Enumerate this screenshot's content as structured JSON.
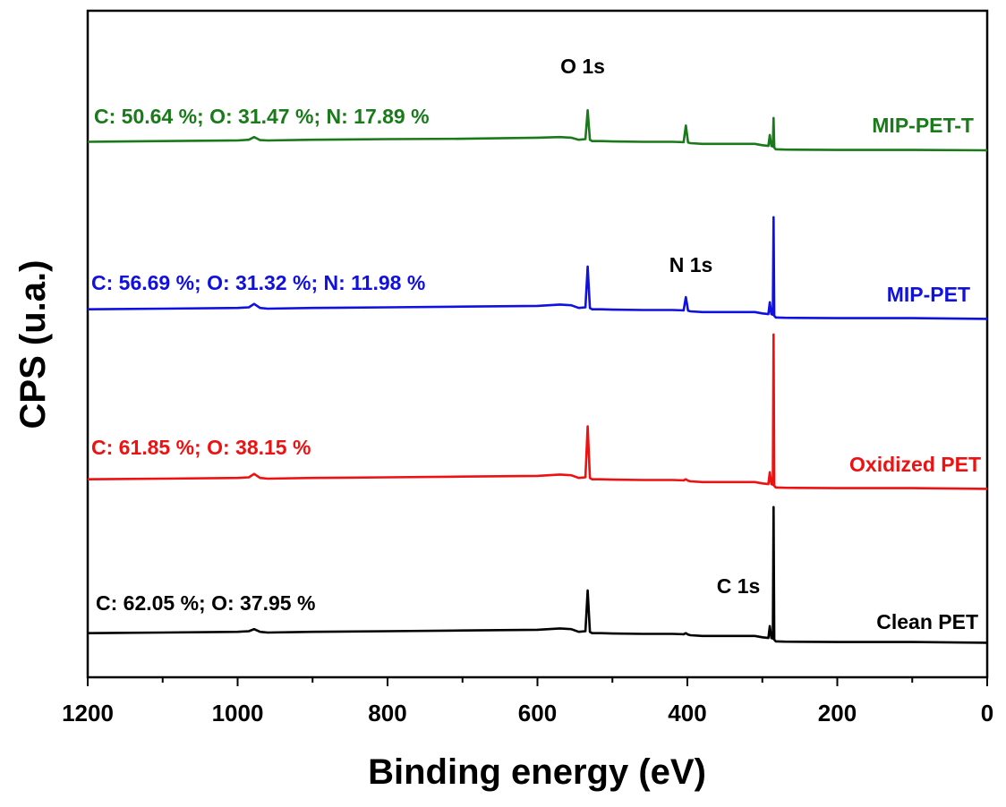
{
  "chart_data": {
    "type": "line",
    "title": "",
    "xlabel": "Binding energy (eV)",
    "ylabel": "CPS (u.a.)",
    "xlim": [
      1200,
      0
    ],
    "x_reversed": true,
    "x_ticks": [
      1200,
      1000,
      800,
      600,
      400,
      200,
      0
    ],
    "y_ticks_shown": false,
    "grid": false,
    "peak_labels": [
      "O 1s",
      "N 1s",
      "C 1s"
    ],
    "series": [
      {
        "name": "MIP-PET-T",
        "color": "#1a7a1a",
        "composition": "C: 50.64 %; O: 31.47 %; N: 17.89 %",
        "x": [
          1200,
          1100,
          1000,
          985,
          978,
          970,
          960,
          900,
          800,
          700,
          600,
          570,
          555,
          545,
          536,
          533,
          530,
          527,
          515,
          500,
          460,
          420,
          405,
          402,
          399,
          396,
          380,
          340,
          310,
          300,
          292,
          290,
          288,
          286,
          285,
          284,
          282,
          280,
          270,
          200,
          100,
          0
        ],
        "y": [
          0.72,
          0.74,
          0.76,
          0.78,
          0.86,
          0.77,
          0.76,
          0.78,
          0.8,
          0.81,
          0.84,
          0.86,
          0.84,
          0.78,
          0.8,
          1.65,
          0.78,
          0.74,
          0.74,
          0.73,
          0.72,
          0.72,
          0.71,
          1.2,
          0.7,
          0.68,
          0.66,
          0.66,
          0.66,
          0.62,
          0.6,
          0.92,
          0.6,
          0.58,
          1.42,
          0.55,
          0.5,
          0.5,
          0.49,
          0.48,
          0.48,
          0.47
        ]
      },
      {
        "name": "MIP-PET",
        "color": "#1010e0",
        "composition": "C: 56.69 %; O: 31.32 %; N: 11.98 %",
        "x": [
          1200,
          1100,
          1000,
          985,
          978,
          970,
          960,
          900,
          800,
          700,
          600,
          570,
          555,
          545,
          536,
          533,
          530,
          527,
          515,
          500,
          460,
          420,
          405,
          402,
          399,
          396,
          380,
          340,
          310,
          300,
          292,
          290,
          288,
          286,
          285,
          284,
          282,
          280,
          270,
          200,
          100,
          0
        ],
        "y": [
          0.74,
          0.76,
          0.78,
          0.8,
          0.9,
          0.78,
          0.76,
          0.78,
          0.8,
          0.82,
          0.84,
          0.88,
          0.86,
          0.78,
          0.8,
          2.0,
          0.78,
          0.74,
          0.74,
          0.73,
          0.72,
          0.72,
          0.71,
          1.1,
          0.7,
          0.68,
          0.66,
          0.66,
          0.66,
          0.62,
          0.6,
          0.95,
          0.6,
          0.58,
          3.45,
          0.55,
          0.5,
          0.5,
          0.49,
          0.48,
          0.48,
          0.46
        ]
      },
      {
        "name": "Oxidized PET",
        "color": "#ee1111",
        "composition": "C: 61.85 %; O: 38.15 %",
        "x": [
          1200,
          1100,
          1000,
          985,
          978,
          970,
          960,
          900,
          800,
          700,
          600,
          570,
          555,
          545,
          536,
          533,
          530,
          527,
          515,
          500,
          460,
          420,
          405,
          402,
          399,
          396,
          380,
          340,
          310,
          300,
          292,
          290,
          288,
          286,
          285,
          284,
          282,
          280,
          270,
          200,
          100,
          0
        ],
        "y": [
          0.74,
          0.76,
          0.78,
          0.8,
          0.9,
          0.78,
          0.76,
          0.78,
          0.8,
          0.82,
          0.84,
          0.88,
          0.86,
          0.78,
          0.8,
          2.3,
          0.78,
          0.74,
          0.74,
          0.73,
          0.72,
          0.72,
          0.71,
          0.74,
          0.7,
          0.68,
          0.66,
          0.66,
          0.66,
          0.62,
          0.6,
          0.95,
          0.6,
          0.58,
          5.0,
          0.55,
          0.5,
          0.5,
          0.49,
          0.48,
          0.48,
          0.46
        ]
      },
      {
        "name": "Clean PET",
        "color": "#000000",
        "composition": "C: 62.05 %; O: 37.95 %",
        "x": [
          1200,
          1100,
          1000,
          985,
          978,
          970,
          960,
          900,
          800,
          700,
          600,
          570,
          555,
          545,
          536,
          533,
          530,
          527,
          515,
          500,
          460,
          420,
          405,
          402,
          399,
          396,
          380,
          340,
          310,
          300,
          292,
          290,
          288,
          286,
          285,
          284,
          282,
          280,
          270,
          200,
          100,
          0
        ],
        "y": [
          0.74,
          0.76,
          0.78,
          0.8,
          0.86,
          0.78,
          0.76,
          0.78,
          0.8,
          0.82,
          0.84,
          0.88,
          0.86,
          0.78,
          0.8,
          2.0,
          0.78,
          0.74,
          0.74,
          0.73,
          0.72,
          0.72,
          0.71,
          0.74,
          0.7,
          0.68,
          0.66,
          0.66,
          0.66,
          0.62,
          0.6,
          0.95,
          0.6,
          0.58,
          4.45,
          0.55,
          0.5,
          0.5,
          0.49,
          0.48,
          0.48,
          0.46
        ]
      }
    ]
  }
}
